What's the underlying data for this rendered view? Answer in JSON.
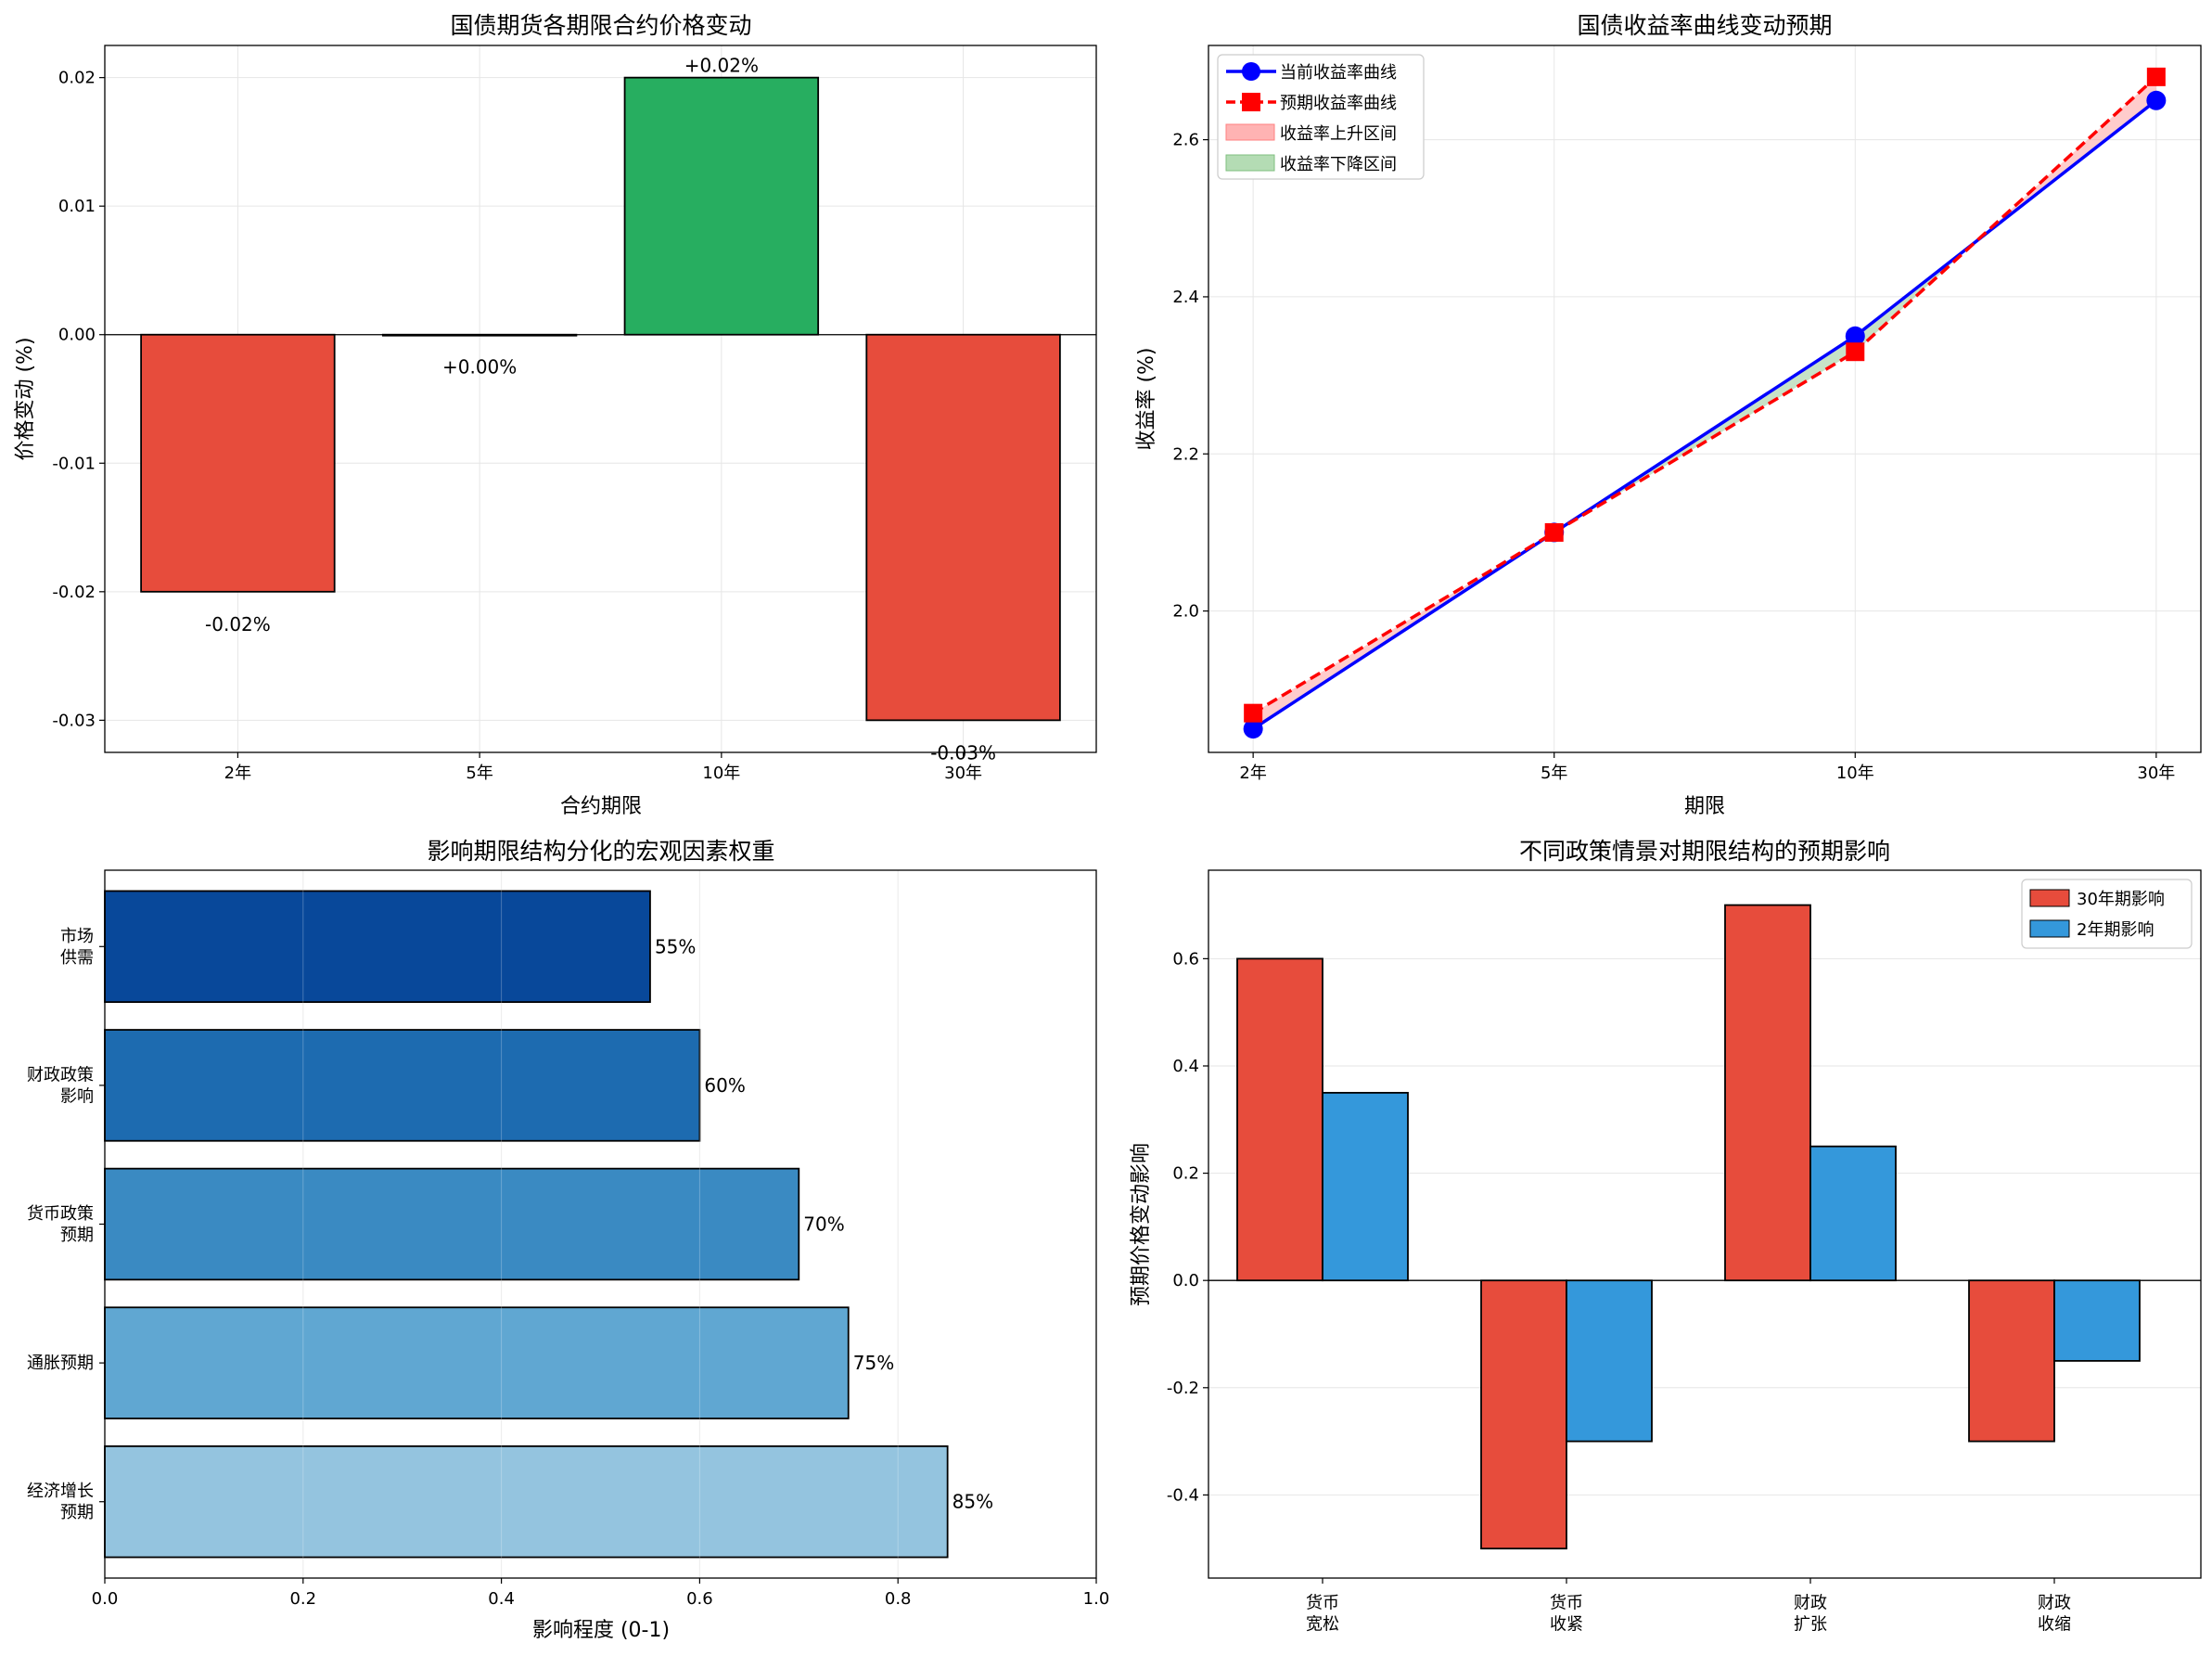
{
  "chart_data": [
    {
      "type": "bar",
      "title": "国债期货各期限合约价格变动",
      "xlabel": "合约期限",
      "ylabel": "价格变动 (%)",
      "categories": [
        "2年",
        "5年",
        "10年",
        "30年"
      ],
      "values": [
        -0.02,
        0.0,
        0.02,
        -0.03
      ],
      "value_labels": [
        "-0.02%",
        "+0.00%",
        "+0.02%",
        "-0.03%"
      ],
      "colors": [
        "#e74c3c",
        "#27ae60",
        "#27ae60",
        "#e74c3c"
      ],
      "ylim": [
        -0.0325,
        0.0225
      ],
      "yticks": [
        0.02,
        0.01,
        0.0,
        -0.01,
        -0.02,
        -0.03
      ],
      "ytick_labels": [
        "0.02",
        "0.01",
        "0.00",
        "-0.01",
        "-0.02",
        "-0.03"
      ]
    },
    {
      "type": "line",
      "title": "国债收益率曲线变动预期",
      "xlabel": "期限",
      "ylabel": "收益率 (%)",
      "categories": [
        "2年",
        "5年",
        "10年",
        "30年"
      ],
      "series": [
        {
          "name": "当前收益率曲线",
          "values": [
            1.85,
            2.1,
            2.35,
            2.65
          ],
          "color": "#0000ff",
          "marker": "circle",
          "style": "solid"
        },
        {
          "name": "预期收益率曲线",
          "values": [
            1.87,
            2.1,
            2.33,
            2.68
          ],
          "color": "#ff0000",
          "marker": "square",
          "style": "dashed"
        }
      ],
      "fills": [
        {
          "name": "收益率上升区间",
          "color": "#ff9999"
        },
        {
          "name": "收益率下降区间",
          "color": "#90c890"
        }
      ],
      "ylim": [
        1.82,
        2.72
      ],
      "yticks": [
        2.0,
        2.2,
        2.4,
        2.6
      ],
      "ytick_labels": [
        "2.0",
        "2.2",
        "2.4",
        "2.6"
      ],
      "legend_position": "top-left"
    },
    {
      "type": "barh",
      "title": "影响期限结构分化的宏观因素权重",
      "xlabel": "影响程度 (0-1)",
      "categories": [
        [
          "经济增长",
          "预期"
        ],
        [
          "通胀预期"
        ],
        [
          "货币政策",
          "预期"
        ],
        [
          "财政政策",
          "影响"
        ],
        [
          "市场",
          "供需"
        ]
      ],
      "values": [
        0.85,
        0.75,
        0.7,
        0.6,
        0.55
      ],
      "value_labels": [
        "85%",
        "75%",
        "70%",
        "60%",
        "55%"
      ],
      "colors": [
        "#94c4df",
        "#60a7d2",
        "#3a8ac2",
        "#1d6bb0",
        "#08489a"
      ],
      "xlim": [
        0,
        1.0
      ],
      "xticks": [
        0.0,
        0.2,
        0.4,
        0.6,
        0.8,
        1.0
      ],
      "xtick_labels": [
        "0.0",
        "0.2",
        "0.4",
        "0.6",
        "0.8",
        "1.0"
      ]
    },
    {
      "type": "bar",
      "title": "不同政策情景对期限结构的预期影响",
      "ylabel": "预期价格变动影响",
      "categories": [
        [
          "货币",
          "宽松"
        ],
        [
          "货币",
          "收紧"
        ],
        [
          "财政",
          "扩张"
        ],
        [
          "财政",
          "收缩"
        ]
      ],
      "series": [
        {
          "name": "30年期影响",
          "values": [
            0.6,
            -0.5,
            0.7,
            -0.3
          ],
          "color": "#e74c3c"
        },
        {
          "name": "2年期影响",
          "values": [
            0.35,
            -0.3,
            0.25,
            -0.15
          ],
          "color": "#3498db"
        }
      ],
      "ylim": [
        -0.555,
        0.765
      ],
      "yticks": [
        0.6,
        0.4,
        0.2,
        0.0,
        -0.2,
        -0.4
      ],
      "ytick_labels": [
        "0.6",
        "0.4",
        "0.2",
        "0.0",
        "-0.2",
        "-0.4"
      ],
      "legend_position": "top-right"
    }
  ]
}
